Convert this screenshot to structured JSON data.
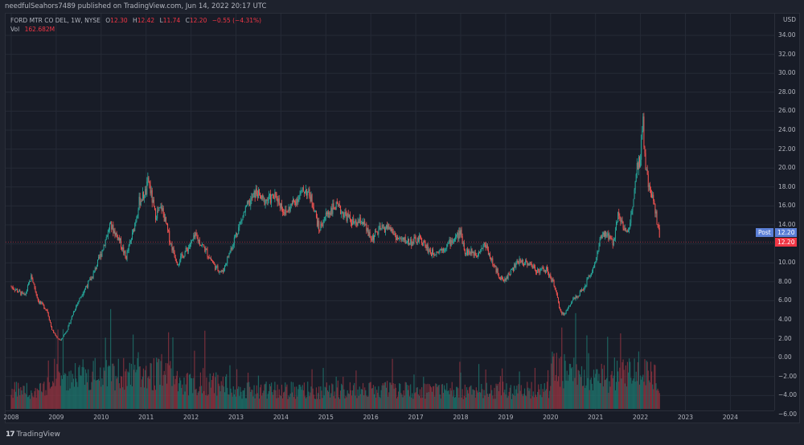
{
  "header": {
    "published_by": "needfulSeahors7489 published on TradingView.com, Jun 14, 2022 20:17 UTC"
  },
  "legend": {
    "symbol": "FORD MTR CO DEL, 1W, NYSE",
    "o_label": "O",
    "o_value": "12.30",
    "h_label": "H",
    "h_value": "12.42",
    "l_label": "L",
    "l_value": "11.74",
    "c_label": "C",
    "c_value": "12.20",
    "change": "−0.55 (−4.31%)",
    "vol_label": "Vol",
    "vol_value": "162.682M"
  },
  "price_axis": {
    "currency": "USD",
    "ticks": [
      "34.00",
      "32.00",
      "30.00",
      "28.00",
      "26.00",
      "24.00",
      "22.00",
      "20.00",
      "18.00",
      "16.00",
      "14.00",
      "12.00",
      "10.00",
      "8.00",
      "6.00",
      "4.00",
      "2.00",
      "0.00",
      "−2.00",
      "−4.00",
      "−6.00"
    ],
    "post_label": "Post",
    "post_value": "12.20",
    "last_value": "12.20"
  },
  "time_axis": {
    "ticks": [
      "2008",
      "2009",
      "2010",
      "2011",
      "2012",
      "2013",
      "2014",
      "2015",
      "2016",
      "2017",
      "2018",
      "2019",
      "2020",
      "2021",
      "2022",
      "2023",
      "2024"
    ]
  },
  "footer": {
    "brand": "TradingView",
    "logo": "17"
  },
  "colors": {
    "up": "#26a69a",
    "down": "#ef5350",
    "up_vol": "#1f6e68",
    "down_vol": "#8a3340",
    "post_tag": "#5b7fd6",
    "last_tag": "#f23645",
    "grid": "#252a36",
    "background": "#181c27"
  },
  "chart_data": {
    "type": "candlestick",
    "title": "FORD MTR CO DEL, 1W, NYSE",
    "xlabel": "",
    "ylabel": "USD",
    "ylim": [
      -6,
      35
    ],
    "x_ticks": [
      "2008",
      "2009",
      "2010",
      "2011",
      "2012",
      "2013",
      "2014",
      "2015",
      "2016",
      "2017",
      "2018",
      "2019",
      "2020",
      "2021",
      "2022",
      "2023",
      "2024"
    ],
    "price_path": [
      [
        2008.0,
        7.5
      ],
      [
        2008.3,
        6.5
      ],
      [
        2008.45,
        8.6
      ],
      [
        2008.6,
        6.0
      ],
      [
        2008.8,
        5.0
      ],
      [
        2008.9,
        3.0
      ],
      [
        2009.0,
        2.2
      ],
      [
        2009.1,
        1.8
      ],
      [
        2009.25,
        3.0
      ],
      [
        2009.4,
        5.0
      ],
      [
        2009.6,
        7.0
      ],
      [
        2009.8,
        8.5
      ],
      [
        2010.0,
        11.0
      ],
      [
        2010.2,
        14.0
      ],
      [
        2010.4,
        12.5
      ],
      [
        2010.55,
        10.5
      ],
      [
        2010.7,
        13.0
      ],
      [
        2010.85,
        16.5
      ],
      [
        2011.0,
        17.5
      ],
      [
        2011.05,
        18.8
      ],
      [
        2011.2,
        15.0
      ],
      [
        2011.35,
        15.8
      ],
      [
        2011.55,
        12.0
      ],
      [
        2011.7,
        10.0
      ],
      [
        2011.85,
        11.0
      ],
      [
        2012.1,
        12.8
      ],
      [
        2012.3,
        11.5
      ],
      [
        2012.55,
        9.5
      ],
      [
        2012.7,
        9.0
      ],
      [
        2012.85,
        11.0
      ],
      [
        2013.0,
        13.0
      ],
      [
        2013.2,
        15.5
      ],
      [
        2013.45,
        17.5
      ],
      [
        2013.6,
        16.5
      ],
      [
        2013.9,
        17.0
      ],
      [
        2014.1,
        15.2
      ],
      [
        2014.3,
        16.5
      ],
      [
        2014.55,
        17.8
      ],
      [
        2014.7,
        16.5
      ],
      [
        2014.85,
        13.5
      ],
      [
        2015.0,
        15.0
      ],
      [
        2015.2,
        16.0
      ],
      [
        2015.45,
        15.0
      ],
      [
        2015.65,
        14.0
      ],
      [
        2015.8,
        14.5
      ],
      [
        2016.0,
        12.5
      ],
      [
        2016.2,
        13.5
      ],
      [
        2016.4,
        13.8
      ],
      [
        2016.6,
        12.5
      ],
      [
        2016.9,
        12.2
      ],
      [
        2017.1,
        12.5
      ],
      [
        2017.35,
        11.0
      ],
      [
        2017.6,
        11.5
      ],
      [
        2017.85,
        12.5
      ],
      [
        2018.0,
        13.2
      ],
      [
        2018.1,
        11.2
      ],
      [
        2018.35,
        11.0
      ],
      [
        2018.55,
        12.0
      ],
      [
        2018.75,
        9.5
      ],
      [
        2018.95,
        8.0
      ],
      [
        2019.1,
        9.0
      ],
      [
        2019.3,
        10.2
      ],
      [
        2019.5,
        10.0
      ],
      [
        2019.7,
        9.2
      ],
      [
        2019.9,
        9.3
      ],
      [
        2020.1,
        7.5
      ],
      [
        2020.2,
        5.0
      ],
      [
        2020.3,
        4.5
      ],
      [
        2020.5,
        6.2
      ],
      [
        2020.7,
        7.0
      ],
      [
        2020.85,
        8.5
      ],
      [
        2021.0,
        10.0
      ],
      [
        2021.1,
        12.5
      ],
      [
        2021.25,
        13.0
      ],
      [
        2021.4,
        12.0
      ],
      [
        2021.5,
        15.5
      ],
      [
        2021.6,
        14.0
      ],
      [
        2021.7,
        13.0
      ],
      [
        2021.8,
        15.0
      ],
      [
        2021.9,
        20.0
      ],
      [
        2022.0,
        21.0
      ],
      [
        2022.05,
        25.8
      ],
      [
        2022.1,
        20.5
      ],
      [
        2022.2,
        17.5
      ],
      [
        2022.3,
        16.5
      ],
      [
        2022.38,
        14.0
      ],
      [
        2022.44,
        12.2
      ]
    ],
    "last_close": 12.2,
    "last_ohlc": {
      "open": 12.3,
      "high": 12.42,
      "low": 11.74,
      "close": 12.2
    },
    "last_volume": "162.682M",
    "notes": "Weekly candlesticks with volume histogram overlaid at bottom; volume peaks in 2009-2011 and 2020-2022."
  }
}
